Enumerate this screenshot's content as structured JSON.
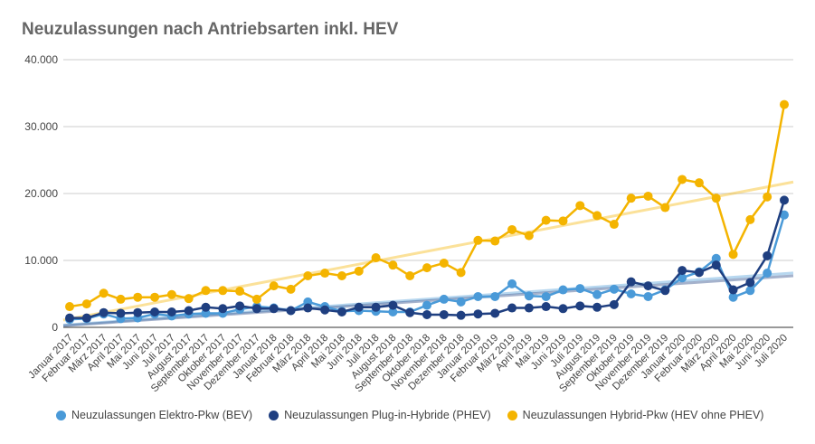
{
  "chart_data": {
    "type": "line",
    "title": "Neuzulassungen nach Antriebsarten inkl. HEV",
    "xlabel": "",
    "ylabel": "",
    "ylim": [
      0,
      40000
    ],
    "yticks": [
      "0",
      "10.000",
      "20.000",
      "30.000",
      "40.000"
    ],
    "grid": true,
    "legend": "bottom",
    "trendlines": true,
    "categories": [
      "Januar 2017",
      "Februar 2017",
      "März 2017",
      "April 2017",
      "Mai 2017",
      "Juni 2017",
      "Juli 2017",
      "August 2017",
      "September 2017",
      "Oktober 2017",
      "November 2017",
      "Dezember 2017",
      "Januar 2018",
      "Februar 2018",
      "März 2018",
      "April 2018",
      "Mai 2018",
      "Juni 2018",
      "Juli 2018",
      "August 2018",
      "September 2018",
      "Oktober 2018",
      "November 2018",
      "Dezember 2018",
      "Januar 2019",
      "Februar 2019",
      "März 2019",
      "April 2019",
      "Mai 2019",
      "Juni 2019",
      "Juli 2019",
      "August 2019",
      "September 2019",
      "Oktober 2019",
      "November 2019",
      "Dezember 2019",
      "Januar 2020",
      "Februar 2020",
      "März 2020",
      "April 2020",
      "Mai 2020",
      "Juni 2020",
      "Juli 2020"
    ],
    "series": [
      {
        "name": "Neuzulassungen Elektro-Pkw (BEV)",
        "color": "#4a9ad8",
        "values": [
          1200,
          1300,
          2000,
          1300,
          1400,
          2000,
          1700,
          2000,
          2100,
          2100,
          2700,
          3100,
          2900,
          2500,
          3800,
          3100,
          2400,
          2500,
          2400,
          2300,
          2300,
          3300,
          4200,
          3800,
          4600,
          4600,
          6500,
          4700,
          4600,
          5600,
          5800,
          4900,
          5700,
          5000,
          4600,
          5600,
          7400,
          8300,
          10300,
          4500,
          5500,
          8100,
          16800
        ]
      },
      {
        "name": "Neuzulassungen Plug-in-Hybride (PHEV)",
        "color": "#1f3f80",
        "values": [
          1400,
          1400,
          2200,
          2100,
          2200,
          2300,
          2300,
          2500,
          3000,
          2800,
          3200,
          2800,
          2800,
          2500,
          2900,
          2600,
          2300,
          3000,
          3000,
          3300,
          2200,
          1900,
          1900,
          1800,
          2000,
          2100,
          2900,
          2900,
          3100,
          2800,
          3200,
          3000,
          3400,
          6800,
          6200,
          5500,
          8500,
          8200,
          9300,
          5600,
          6700,
          10700,
          19000
        ]
      },
      {
        "name": "Neuzulassungen Hybrid-Pkw (HEV ohne PHEV)",
        "color": "#f4b400",
        "values": [
          3100,
          3500,
          5100,
          4200,
          4500,
          4500,
          4900,
          4300,
          5500,
          5500,
          5400,
          4200,
          6200,
          5700,
          7700,
          8100,
          7700,
          8400,
          10400,
          9300,
          7700,
          8900,
          9600,
          8200,
          13000,
          12900,
          14600,
          13700,
          16000,
          15900,
          18200,
          16700,
          15400,
          19300,
          19600,
          17900,
          22100,
          21600,
          19300,
          10900,
          16100,
          19500,
          33300
        ]
      }
    ]
  }
}
